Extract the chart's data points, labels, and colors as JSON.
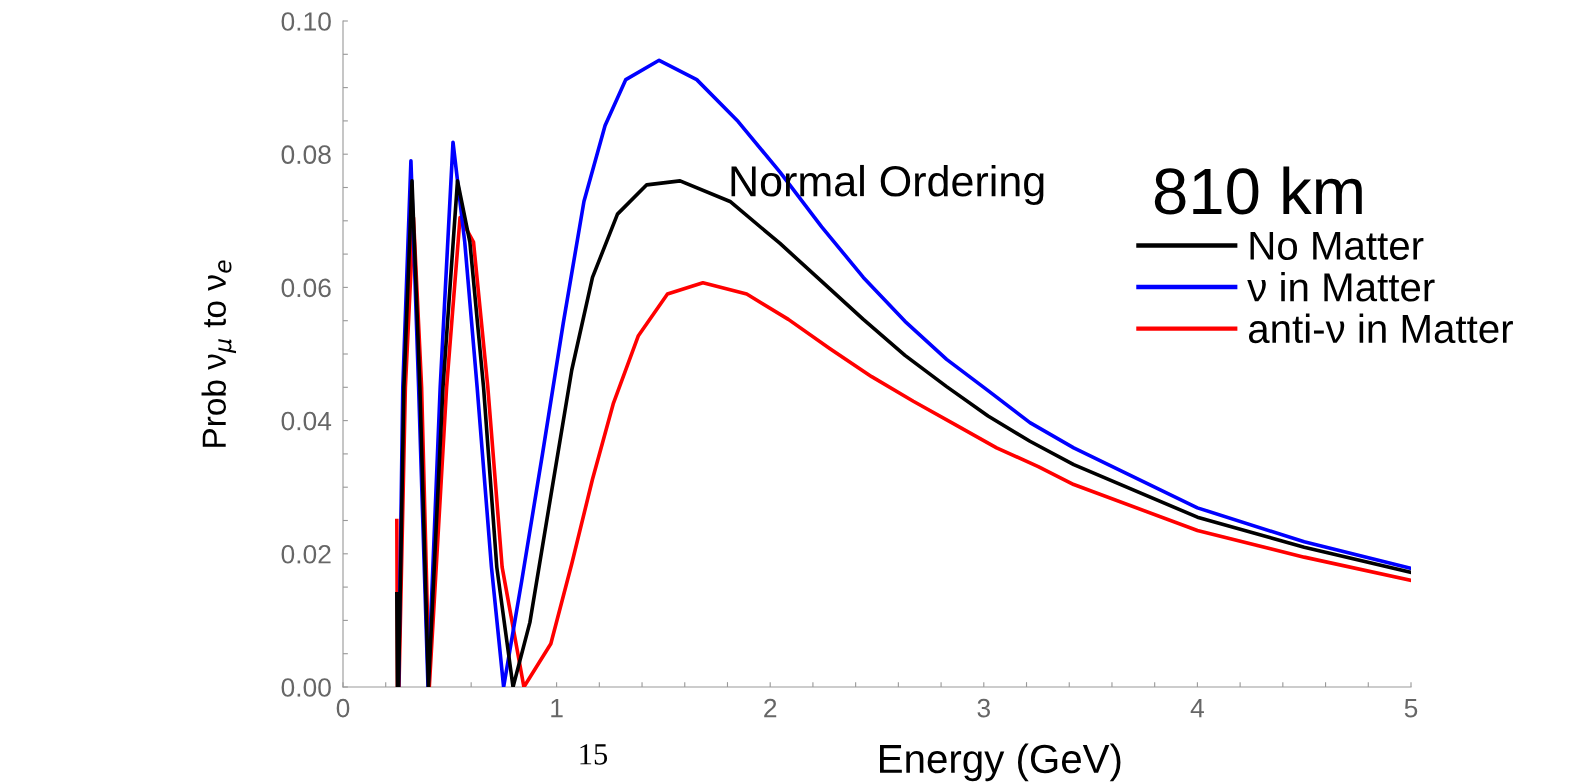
{
  "chart_data": {
    "type": "line",
    "xlabel": "Energy (GeV)",
    "ylabel": "Prob ν$_{μ}$ to ν$_{e}$",
    "xlim": [
      0,
      5
    ],
    "ylim": [
      0,
      0.1
    ],
    "xticks": [
      0,
      {
        "value": 0.2,
        "label": null
      },
      {
        "value": 0.4,
        "label": null
      },
      {
        "value": 0.6,
        "label": null
      },
      {
        "value": 0.8,
        "label": null
      },
      1,
      {
        "value": 1.2,
        "label": null
      },
      {
        "value": 1.4,
        "label": null
      },
      {
        "value": 1.6,
        "label": null
      },
      {
        "value": 1.8,
        "label": null
      },
      2,
      {
        "value": 2.2,
        "label": null
      },
      {
        "value": 2.4,
        "label": null
      },
      {
        "value": 2.6,
        "label": null
      },
      {
        "value": 2.8,
        "label": null
      },
      3,
      {
        "value": 3.2,
        "label": null
      },
      {
        "value": 3.4,
        "label": null
      },
      {
        "value": 3.6,
        "label": null
      },
      {
        "value": 3.8,
        "label": null
      },
      4,
      {
        "value": 4.2,
        "label": null
      },
      {
        "value": 4.4,
        "label": null
      },
      {
        "value": 4.6,
        "label": null
      },
      {
        "value": 4.8,
        "label": null
      },
      5
    ],
    "yticks": [
      {
        "value": 0,
        "label": "0.00"
      },
      {
        "value": 0.005,
        "label": null
      },
      {
        "value": 0.01,
        "label": null
      },
      {
        "value": 0.015,
        "label": null
      },
      {
        "value": 0.02,
        "label": "0.02"
      },
      {
        "value": 0.025,
        "label": null
      },
      {
        "value": 0.03,
        "label": null
      },
      {
        "value": 0.035,
        "label": null
      },
      {
        "value": 0.04,
        "label": "0.04"
      },
      {
        "value": 0.045,
        "label": null
      },
      {
        "value": 0.05,
        "label": null
      },
      {
        "value": 0.055,
        "label": null
      },
      {
        "value": 0.06,
        "label": "0.06"
      },
      {
        "value": 0.065,
        "label": null
      },
      {
        "value": 0.07,
        "label": null
      },
      {
        "value": 0.075,
        "label": null
      },
      {
        "value": 0.08,
        "label": "0.08"
      },
      {
        "value": 0.085,
        "label": null
      },
      {
        "value": 0.09,
        "label": null
      },
      {
        "value": 0.095,
        "label": null
      },
      {
        "value": 0.1,
        "label": "0.10"
      }
    ],
    "grid": false,
    "legend": "top right",
    "marker": "none",
    "line_style": "solid",
    "annotations": [
      "Normal Ordering",
      "810 km",
      "15"
    ],
    "series": [
      {
        "name": "No Matter",
        "color": "#000000",
        "x": [
          0.252,
          0.255,
          0.26,
          0.285,
          0.323,
          0.36,
          0.4,
          0.468,
          0.536,
          0.594,
          0.658,
          0.72,
          0.796,
          0.875,
          0.973,
          1.071,
          1.168,
          1.285,
          1.422,
          1.578,
          1.812,
          2.046,
          2.241,
          2.436,
          2.631,
          2.826,
          3.02,
          3.216,
          3.421,
          4.0,
          4.5,
          5.0
        ],
        "values": [
          0.014,
          0.0,
          0.0,
          0.045,
          0.076,
          0.045,
          0.0,
          0.045,
          0.076,
          0.0668,
          0.045,
          0.018,
          0.0,
          0.0097,
          0.0287,
          0.0476,
          0.0615,
          0.071,
          0.0754,
          0.076,
          0.0729,
          0.0666,
          0.0609,
          0.0552,
          0.0498,
          0.0451,
          0.0407,
          0.0369,
          0.0334,
          0.0255,
          0.021,
          0.0172
        ]
      },
      {
        "name": "ν in Matter",
        "color": "#0000ff",
        "x": [
          0.26,
          0.28,
          0.318,
          0.354,
          0.398,
          0.455,
          0.515,
          0.57,
          0.628,
          0.695,
          0.752,
          0.837,
          0.934,
          1.031,
          1.128,
          1.227,
          1.324,
          1.48,
          1.656,
          1.85,
          2.046,
          2.241,
          2.436,
          2.631,
          2.826,
          3.02,
          3.216,
          3.421,
          4.0,
          4.5,
          5.0
        ],
        "values": [
          0.0,
          0.045,
          0.079,
          0.045,
          0.0,
          0.045,
          0.0818,
          0.0668,
          0.045,
          0.018,
          0.0,
          0.016,
          0.035,
          0.0546,
          0.0729,
          0.0843,
          0.0912,
          0.0941,
          0.0912,
          0.0849,
          0.0773,
          0.0691,
          0.0615,
          0.0549,
          0.0492,
          0.0445,
          0.0397,
          0.0359,
          0.0269,
          0.0218,
          0.0178
        ]
      },
      {
        "name": "anti-ν in Matter",
        "color": "#ff0000",
        "x": [
          0.252,
          0.255,
          0.262,
          0.292,
          0.33,
          0.368,
          0.404,
          0.485,
          0.548,
          0.611,
          0.678,
          0.745,
          0.847,
          0.973,
          1.071,
          1.168,
          1.265,
          1.382,
          1.519,
          1.685,
          1.89,
          2.085,
          2.28,
          2.475,
          2.67,
          2.866,
          3.06,
          3.255,
          3.421,
          4.0,
          4.5,
          5.0
        ],
        "values": [
          0.025,
          0.0,
          0.0,
          0.045,
          0.0705,
          0.045,
          0.0,
          0.045,
          0.0705,
          0.0668,
          0.045,
          0.018,
          0.0,
          0.0065,
          0.0185,
          0.0312,
          0.0425,
          0.0527,
          0.059,
          0.0607,
          0.059,
          0.0552,
          0.0508,
          0.0466,
          0.0429,
          0.0394,
          0.0359,
          0.0331,
          0.0304,
          0.0235,
          0.0195,
          0.016
        ]
      }
    ]
  }
}
